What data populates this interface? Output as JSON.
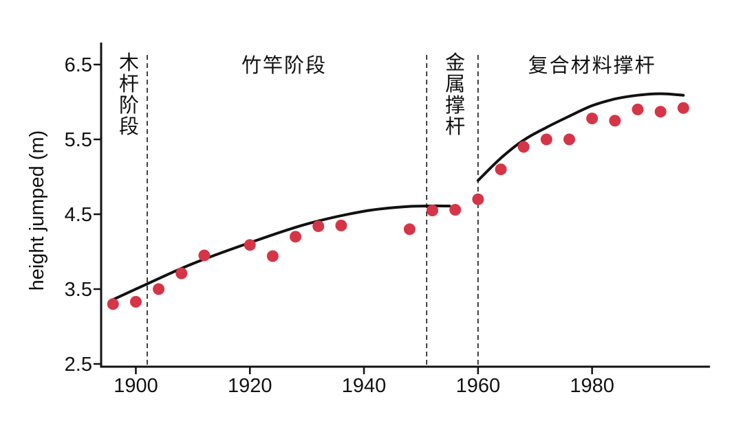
{
  "chart_data": {
    "type": "scatter",
    "title": "",
    "xlabel": "",
    "ylabel": "height jumped (m)",
    "xlim": [
      1895,
      2000
    ],
    "ylim": [
      2.5,
      6.6
    ],
    "x_ticks": [
      1900,
      1920,
      1940,
      1960,
      1980
    ],
    "y_ticks": [
      2.5,
      3.5,
      4.5,
      5.5,
      6.5
    ],
    "x_tick_labels": [
      "1900",
      "1920",
      "1940",
      "1960",
      "1980"
    ],
    "y_tick_labels": [
      "2.5",
      "3.5",
      "4.5",
      "5.5",
      "6.5"
    ],
    "grid": false,
    "points": {
      "x": [
        1896,
        1900,
        1904,
        1908,
        1912,
        1920,
        1924,
        1928,
        1932,
        1936,
        1948,
        1952,
        1956,
        1960,
        1964,
        1968,
        1972,
        1976,
        1980,
        1984,
        1988,
        1992,
        1996
      ],
      "y": [
        3.3,
        3.33,
        3.5,
        3.71,
        3.95,
        4.09,
        3.94,
        4.2,
        4.34,
        4.35,
        4.3,
        4.55,
        4.56,
        4.7,
        5.1,
        5.4,
        5.5,
        5.5,
        5.78,
        5.75,
        5.9,
        5.87,
        5.92
      ],
      "color": "#d63447"
    },
    "trend_segments": [
      {
        "x": [
          1896,
          1902,
          1910,
          1920,
          1930,
          1940,
          1947,
          1951,
          1955
        ],
        "y": [
          3.36,
          3.57,
          3.84,
          4.12,
          4.37,
          4.54,
          4.6,
          4.61,
          4.61
        ]
      },
      {
        "x": [
          1960,
          1964,
          1968,
          1972,
          1976,
          1980,
          1984,
          1988,
          1992,
          1996
        ],
        "y": [
          4.95,
          5.25,
          5.49,
          5.66,
          5.81,
          5.95,
          6.04,
          6.09,
          6.11,
          6.09
        ]
      }
    ],
    "line_color": "#111111",
    "era_boundaries": [
      1902,
      1951,
      1960
    ],
    "eras": [
      {
        "label": "木杆阶段",
        "orientation": "vertical",
        "x": 1898.8
      },
      {
        "label": "竹竿阶段",
        "orientation": "horizontal",
        "x": 1926
      },
      {
        "label": "金属撑杆",
        "orientation": "vertical",
        "x": 1956
      },
      {
        "label": "复合材料撑杆",
        "orientation": "horizontal",
        "x": 1980
      }
    ]
  }
}
